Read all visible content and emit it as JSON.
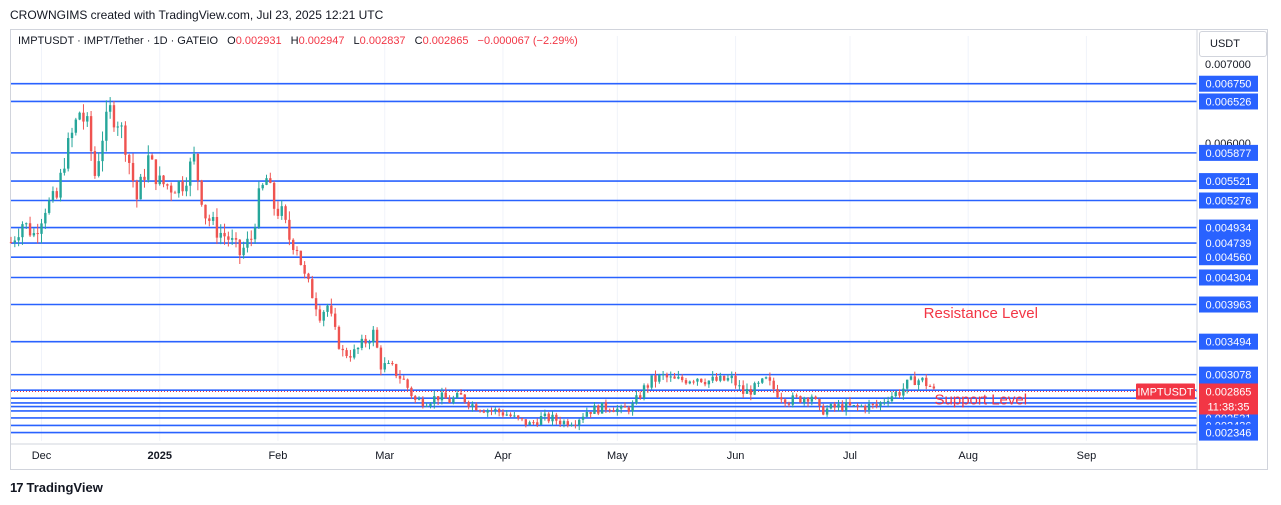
{
  "header": {
    "credit": "CROWNGIMS created with TradingView.com, Jul 23, 2025 12:21 UTC"
  },
  "legend": {
    "symbol": "IMPTUSDT · IMPT/Tether · 1D · GATEIO",
    "open_label": "O",
    "open": "0.002931",
    "high_label": "H",
    "high": "0.002947",
    "low_label": "L",
    "low": "0.002837",
    "close_label": "C",
    "close": "0.002865",
    "change": "−0.000067 (−2.29%)"
  },
  "price_axis": {
    "unit": "USDT"
  },
  "footer": {
    "brand": "TradingView",
    "logo": "17"
  },
  "colors": {
    "up": "#26a69a",
    "down": "#ef5350",
    "level_line": "#2962ff",
    "last_price": "#f23645",
    "annotation": "#f23645",
    "grid": "#f0f3fa"
  },
  "chart_data": {
    "type": "candlestick",
    "x_range": [
      "2024-11-23",
      "2025-09-30"
    ],
    "y_range": [
      0.00224,
      0.0071
    ],
    "grid": true,
    "x_ticks": [
      {
        "date": "2024-12-01",
        "label": "Dec",
        "bold": false
      },
      {
        "date": "2025-01-01",
        "label": "2025",
        "bold": true
      },
      {
        "date": "2025-02-01",
        "label": "Feb",
        "bold": false
      },
      {
        "date": "2025-03-01",
        "label": "Mar",
        "bold": false
      },
      {
        "date": "2025-04-01",
        "label": "Apr",
        "bold": false
      },
      {
        "date": "2025-05-01",
        "label": "May",
        "bold": false
      },
      {
        "date": "2025-06-01",
        "label": "Jun",
        "bold": false
      },
      {
        "date": "2025-07-01",
        "label": "Jul",
        "bold": false
      },
      {
        "date": "2025-08-01",
        "label": "Aug",
        "bold": false
      },
      {
        "date": "2025-09-01",
        "label": "Sep",
        "bold": false
      }
    ],
    "y_ticks": [
      "0.007000",
      "0.006000"
    ],
    "levels": [
      "0.006750",
      "0.006526",
      "0.005877",
      "0.005521",
      "0.005276",
      "0.004934",
      "0.004739",
      "0.004560",
      "0.004304",
      "0.003963",
      "0.003494",
      "0.003078",
      "0.002881",
      "0.002675",
      "0.002531",
      "0.002436",
      "0.002346"
    ],
    "unlabeled_levels": [
      0.00278,
      0.00272,
      0.00262
    ],
    "last_price": {
      "value": "0.002865",
      "symbol": "IMPTUSDT",
      "countdown": "11:38:35"
    },
    "annotations": [
      {
        "text": "Resistance Level",
        "date": "2025-07-18",
        "value": 0.00379
      },
      {
        "text": "Support Level",
        "date": "2025-07-18",
        "value": 0.0027
      }
    ],
    "series": [
      {
        "date": "2024-11-23",
        "close": 0.00475
      },
      {
        "date": "2024-11-26",
        "close": 0.005
      },
      {
        "date": "2024-11-29",
        "close": 0.00485
      },
      {
        "date": "2024-12-02",
        "close": 0.0052
      },
      {
        "date": "2024-12-05",
        "close": 0.0053
      },
      {
        "date": "2024-12-07",
        "close": 0.0058
      },
      {
        "date": "2024-12-09",
        "close": 0.0061
      },
      {
        "date": "2024-12-11",
        "close": 0.0064
      },
      {
        "date": "2024-12-13",
        "close": 0.0062
      },
      {
        "date": "2024-12-15",
        "close": 0.0056
      },
      {
        "date": "2024-12-17",
        "close": 0.0061
      },
      {
        "date": "2024-12-19",
        "close": 0.0064
      },
      {
        "date": "2024-12-21",
        "close": 0.0063
      },
      {
        "date": "2024-12-23",
        "close": 0.006
      },
      {
        "date": "2024-12-26",
        "close": 0.0053
      },
      {
        "date": "2024-12-29",
        "close": 0.0058
      },
      {
        "date": "2025-01-01",
        "close": 0.0055
      },
      {
        "date": "2025-01-04",
        "close": 0.00545
      },
      {
        "date": "2025-01-07",
        "close": 0.0055
      },
      {
        "date": "2025-01-10",
        "close": 0.0058
      },
      {
        "date": "2025-01-13",
        "close": 0.0051
      },
      {
        "date": "2025-01-16",
        "close": 0.0049
      },
      {
        "date": "2025-01-19",
        "close": 0.0048
      },
      {
        "date": "2025-01-22",
        "close": 0.0046
      },
      {
        "date": "2025-01-25",
        "close": 0.0048
      },
      {
        "date": "2025-01-27",
        "close": 0.0053
      },
      {
        "date": "2025-01-29",
        "close": 0.00555
      },
      {
        "date": "2025-01-31",
        "close": 0.0052
      },
      {
        "date": "2025-02-02",
        "close": 0.0051
      },
      {
        "date": "2025-02-04",
        "close": 0.0048
      },
      {
        "date": "2025-02-06",
        "close": 0.0047
      },
      {
        "date": "2025-02-08",
        "close": 0.0043
      },
      {
        "date": "2025-02-10",
        "close": 0.0041
      },
      {
        "date": "2025-02-12",
        "close": 0.00385
      },
      {
        "date": "2025-02-14",
        "close": 0.00395
      },
      {
        "date": "2025-02-16",
        "close": 0.0036
      },
      {
        "date": "2025-02-18",
        "close": 0.00335
      },
      {
        "date": "2025-02-21",
        "close": 0.00335
      },
      {
        "date": "2025-02-24",
        "close": 0.0035
      },
      {
        "date": "2025-02-26",
        "close": 0.0036
      },
      {
        "date": "2025-02-28",
        "close": 0.0032
      },
      {
        "date": "2025-03-03",
        "close": 0.00315
      },
      {
        "date": "2025-03-06",
        "close": 0.003
      },
      {
        "date": "2025-03-09",
        "close": 0.00275
      },
      {
        "date": "2025-03-12",
        "close": 0.00275
      },
      {
        "date": "2025-03-15",
        "close": 0.0028
      },
      {
        "date": "2025-03-18",
        "close": 0.00275
      },
      {
        "date": "2025-03-21",
        "close": 0.0028
      },
      {
        "date": "2025-03-24",
        "close": 0.0027
      },
      {
        "date": "2025-03-27",
        "close": 0.00265
      },
      {
        "date": "2025-03-30",
        "close": 0.00262
      },
      {
        "date": "2025-04-02",
        "close": 0.00258
      },
      {
        "date": "2025-04-05",
        "close": 0.0025
      },
      {
        "date": "2025-04-08",
        "close": 0.00245
      },
      {
        "date": "2025-04-11",
        "close": 0.00253
      },
      {
        "date": "2025-04-14",
        "close": 0.00252
      },
      {
        "date": "2025-04-17",
        "close": 0.00248
      },
      {
        "date": "2025-04-20",
        "close": 0.0025
      },
      {
        "date": "2025-04-23",
        "close": 0.00262
      },
      {
        "date": "2025-04-26",
        "close": 0.00265
      },
      {
        "date": "2025-04-29",
        "close": 0.00268
      },
      {
        "date": "2025-05-02",
        "close": 0.00262
      },
      {
        "date": "2025-05-05",
        "close": 0.00268
      },
      {
        "date": "2025-05-08",
        "close": 0.0029
      },
      {
        "date": "2025-05-10",
        "close": 0.003
      },
      {
        "date": "2025-05-13",
        "close": 0.00305
      },
      {
        "date": "2025-05-16",
        "close": 0.003
      },
      {
        "date": "2025-05-19",
        "close": 0.00302
      },
      {
        "date": "2025-05-22",
        "close": 0.00305
      },
      {
        "date": "2025-05-25",
        "close": 0.003
      },
      {
        "date": "2025-05-28",
        "close": 0.003
      },
      {
        "date": "2025-05-31",
        "close": 0.00302
      },
      {
        "date": "2025-06-03",
        "close": 0.00285
      },
      {
        "date": "2025-06-06",
        "close": 0.0029
      },
      {
        "date": "2025-06-09",
        "close": 0.003
      },
      {
        "date": "2025-06-12",
        "close": 0.00285
      },
      {
        "date": "2025-06-15",
        "close": 0.00275
      },
      {
        "date": "2025-06-18",
        "close": 0.00278
      },
      {
        "date": "2025-06-21",
        "close": 0.00282
      },
      {
        "date": "2025-06-23",
        "close": 0.00262
      },
      {
        "date": "2025-06-26",
        "close": 0.00265
      },
      {
        "date": "2025-06-29",
        "close": 0.00268
      },
      {
        "date": "2025-07-02",
        "close": 0.00266
      },
      {
        "date": "2025-07-05",
        "close": 0.00268
      },
      {
        "date": "2025-07-08",
        "close": 0.00268
      },
      {
        "date": "2025-07-11",
        "close": 0.0028
      },
      {
        "date": "2025-07-14",
        "close": 0.00286
      },
      {
        "date": "2025-07-16",
        "close": 0.00295
      },
      {
        "date": "2025-07-18",
        "close": 0.00302
      },
      {
        "date": "2025-07-20",
        "close": 0.003
      },
      {
        "date": "2025-07-22",
        "close": 0.00293
      },
      {
        "date": "2025-07-23",
        "close": 0.002865
      }
    ]
  }
}
